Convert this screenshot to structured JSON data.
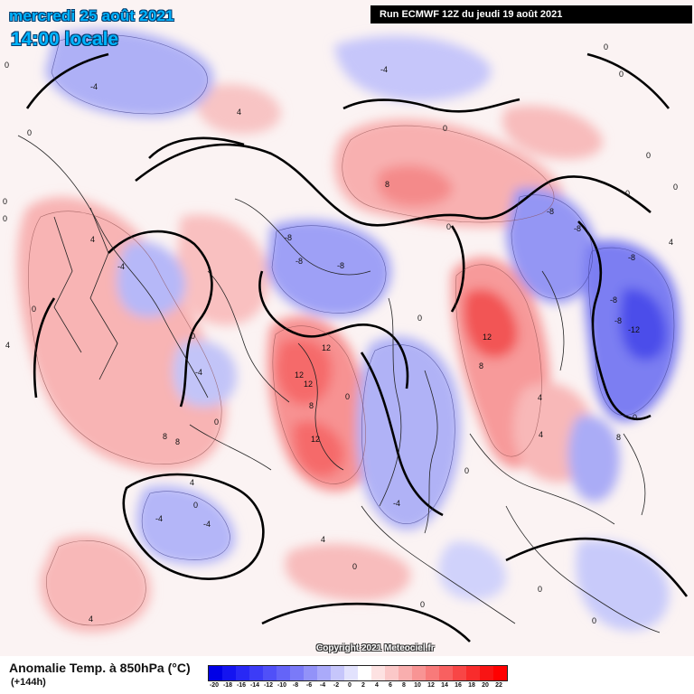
{
  "header": {
    "date": "mercredi 25 août 2021",
    "time": "14:00 locale",
    "run": "Run ECMWF 12Z du jeudi 19 août 2021"
  },
  "footer": {
    "parameter": "Anomalie Temp. à 850hPa (°C)",
    "lead": "(+144h)",
    "copyright": "Copyright 2021 Meteociel.fr"
  },
  "legend": {
    "ticks": [
      "-20",
      "-18",
      "-16",
      "-14",
      "-12",
      "-10",
      "-8",
      "-6",
      "-4",
      "-2",
      "0",
      "2",
      "4",
      "6",
      "8",
      "10",
      "12",
      "14",
      "16",
      "18",
      "20",
      "22"
    ],
    "colors": [
      "#0000e6",
      "#1414f0",
      "#2828f5",
      "#3c3cf7",
      "#5050f8",
      "#6464f8",
      "#7a7af8",
      "#9292f8",
      "#aaaafa",
      "#c6c6fb",
      "#e2e2fd",
      "#ffffff",
      "#fde2e2",
      "#fbc8c8",
      "#f9aeae",
      "#f89494",
      "#f87a7a",
      "#f86060",
      "#f84646",
      "#f82c2c",
      "#f81414",
      "#ff0000"
    ]
  },
  "map": {
    "contour_labels": [
      "0",
      "4",
      "-4",
      "8",
      "-8",
      "12",
      "-12"
    ]
  }
}
